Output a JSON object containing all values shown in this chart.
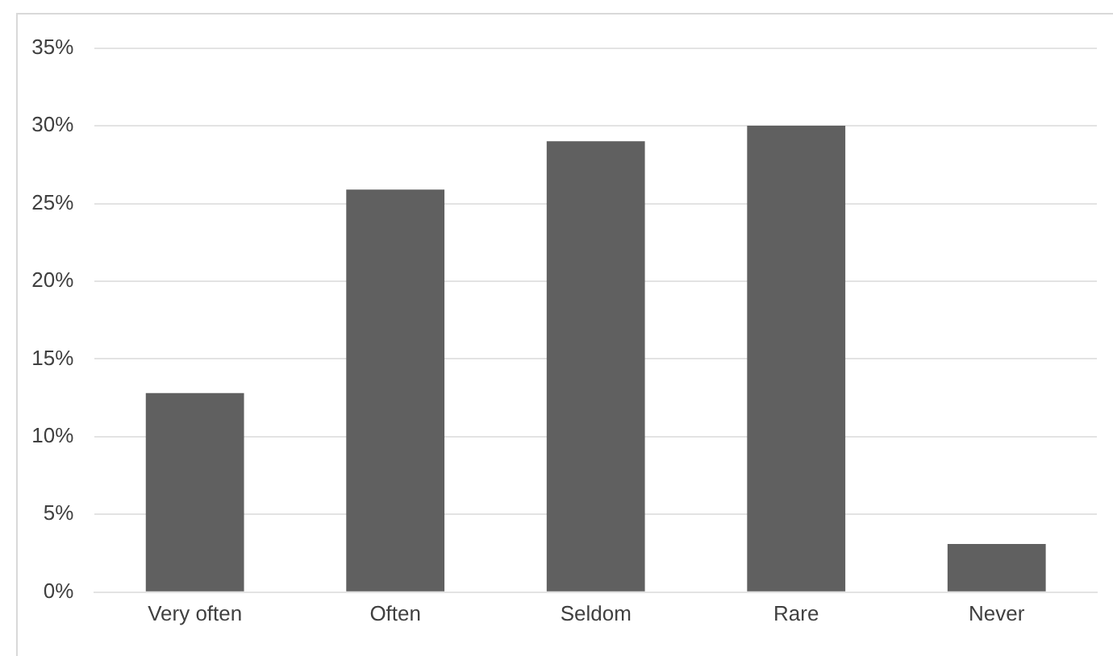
{
  "chart_data": {
    "type": "bar",
    "categories": [
      "Very often",
      "Often",
      "Seldom",
      "Rare",
      "Never"
    ],
    "values": [
      12.8,
      25.9,
      29,
      30,
      3.1
    ],
    "color": "#606060",
    "ylim": [
      0,
      35
    ],
    "yticks": [
      {
        "value": 0,
        "label": "0%"
      },
      {
        "value": 5,
        "label": "5%"
      },
      {
        "value": 10,
        "label": "10%"
      },
      {
        "value": 15,
        "label": "15%"
      },
      {
        "value": 20,
        "label": "20%"
      },
      {
        "value": 25,
        "label": "25%"
      },
      {
        "value": 30,
        "label": "30%"
      },
      {
        "value": 35,
        "label": "35%"
      }
    ],
    "grid": "y",
    "legend": false
  }
}
